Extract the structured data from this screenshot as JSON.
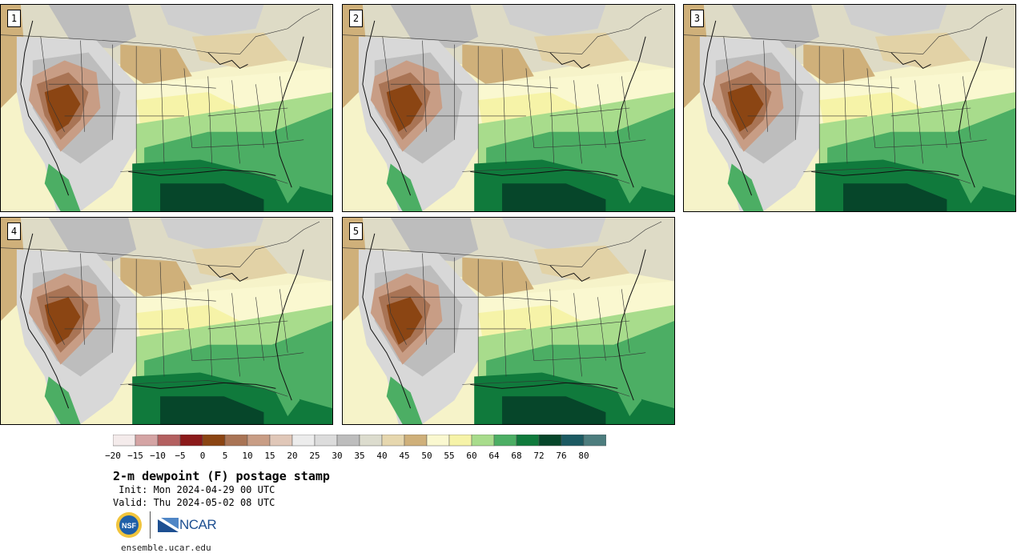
{
  "panels": [
    {
      "label": "1"
    },
    {
      "label": "2"
    },
    {
      "label": "3"
    },
    {
      "label": "4"
    },
    {
      "label": "5"
    }
  ],
  "colorbar": {
    "colors": [
      "#f4ebeb",
      "#d4a4a4",
      "#b36060",
      "#8b1a1a",
      "#8b4513",
      "#a97455",
      "#c89d85",
      "#e0c7b8",
      "#ececec",
      "#dcdcdc",
      "#bdbdbd",
      "#dcdcce",
      "#e6d7ae",
      "#cfb07a",
      "#faf8d0",
      "#f6f3a8",
      "#a8dc8c",
      "#4cae64",
      "#107a3c",
      "#06462a",
      "#1c5a62",
      "#4d7d7e"
    ],
    "ticks": [
      "−20",
      "−15",
      "−10",
      "−5",
      "0",
      "5",
      "10",
      "15",
      "20",
      "25",
      "30",
      "35",
      "40",
      "45",
      "50",
      "55",
      "60",
      "64",
      "68",
      "72",
      "76",
      "80"
    ]
  },
  "title": "2-m dewpoint (F) postage stamp",
  "init_line": " Init: Mon 2024-04-29 00 UTC",
  "valid_line": "Valid: Thu 2024-05-02 08 UTC",
  "logos": {
    "nsf": "NSF",
    "ncar": "NCAR"
  },
  "website": "ensemble.ucar.edu"
}
